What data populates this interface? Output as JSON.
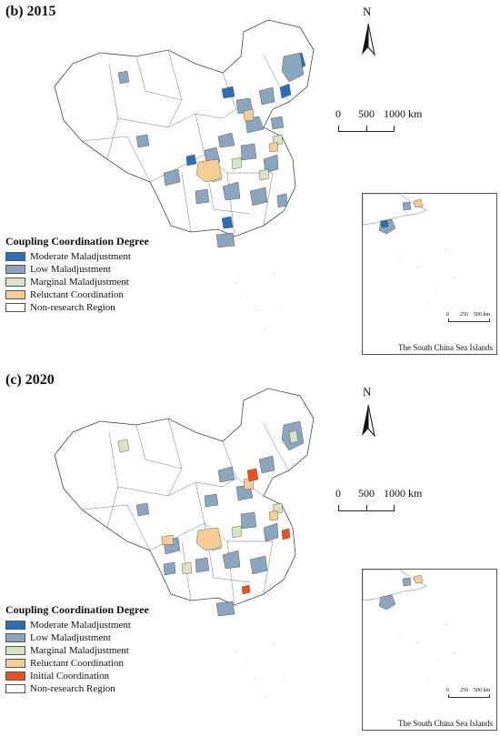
{
  "north_label": "N",
  "scale": {
    "l0": "0",
    "l1": "500",
    "l2": "1000 km"
  },
  "inset": {
    "caption": "The South China Sea Islands",
    "l0": "0",
    "l1": "250",
    "l2": "500 km"
  },
  "legend_title": "Coupling Coordination Degree",
  "colors": {
    "moderate": "#2a6fb5",
    "low": "#8ba5bf",
    "marginal": "#d7e4c4",
    "reluctant": "#f6cc97",
    "initial": "#e8521e",
    "none": "#ffffff"
  },
  "panels": [
    {
      "title": "(b) 2015",
      "legend": [
        {
          "label": "Moderate Maladjustment",
          "color": "#2a6fb5"
        },
        {
          "label": "Low Maladjustment",
          "color": "#8ba5bf"
        },
        {
          "label": "Marginal Maladjustment",
          "color": "#d7e4c4"
        },
        {
          "label": "Reluctant Coordination",
          "color": "#f6cc97"
        },
        {
          "label": "Non-research Region",
          "color": "#ffffff"
        }
      ]
    },
    {
      "title": "(c) 2020",
      "legend": [
        {
          "label": "Moderate Maladjustment",
          "color": "#2a6fb5"
        },
        {
          "label": "Low Maladjustment",
          "color": "#8ba5bf"
        },
        {
          "label": "Marginal Maladjustment",
          "color": "#d7e4c4"
        },
        {
          "label": "Reluctant Coordination",
          "color": "#f6cc97"
        },
        {
          "label": "Initial Coordination",
          "color": "#e8521e"
        },
        {
          "label": "Non-research Region",
          "color": "#ffffff"
        }
      ]
    }
  ]
}
